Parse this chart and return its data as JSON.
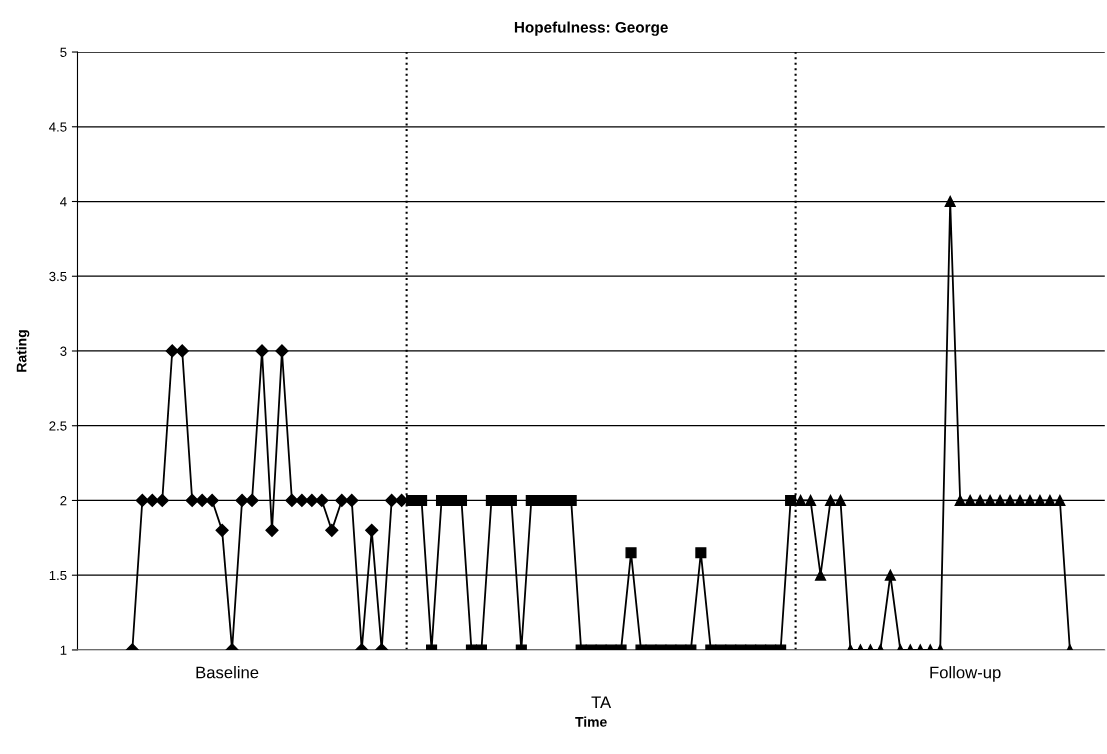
{
  "chart_data": {
    "type": "line",
    "title": "Hopefulness: George",
    "xlabel": "Time",
    "ylabel": "Rating",
    "categories": [
      null,
      null,
      null,
      null,
      null,
      null,
      null,
      null,
      null,
      null,
      null,
      null,
      null,
      null,
      null,
      null,
      null,
      null,
      null,
      null,
      null,
      null,
      null,
      null,
      null,
      null,
      null,
      null,
      null,
      null,
      null,
      null,
      null,
      null,
      null,
      null,
      null,
      null,
      null,
      null,
      null,
      null,
      null,
      null,
      null,
      null,
      null,
      null,
      null,
      null,
      null,
      null,
      null,
      null,
      null,
      null,
      null,
      null,
      null,
      null,
      null,
      null,
      null,
      null,
      null,
      null,
      null,
      null,
      null,
      null,
      null,
      null,
      null,
      null,
      null,
      null,
      null,
      null,
      null,
      null,
      null,
      null,
      null,
      null,
      null,
      null,
      null,
      null,
      null,
      null,
      null,
      null,
      null,
      null,
      null,
      null,
      null,
      null,
      null,
      null,
      null,
      null,
      null
    ],
    "ylim": [
      1,
      5
    ],
    "yticks": [
      1,
      1.5,
      2,
      2.5,
      3,
      3.5,
      4,
      4.5,
      5
    ],
    "grid": "y",
    "tick_labels": "y",
    "series": [
      {
        "color": "#000000",
        "marker": "diamond",
        "values": [
          null,
          null,
          null,
          null,
          null,
          1,
          2,
          2,
          2,
          3,
          3,
          2,
          2,
          2,
          1.8,
          1,
          2,
          2,
          3,
          1.8,
          3,
          2,
          2,
          2,
          2,
          1.8,
          2,
          2,
          1,
          1.8,
          1,
          2,
          2,
          null,
          null,
          null,
          null,
          null,
          null,
          null,
          null,
          null,
          null,
          null,
          null,
          null,
          null,
          null,
          null,
          null,
          null,
          null,
          null,
          null,
          null,
          null,
          null,
          null,
          null,
          null,
          null,
          null,
          null,
          null,
          null,
          null,
          null,
          null,
          null,
          null,
          null,
          null,
          null,
          null,
          null,
          null,
          null,
          null,
          null,
          null,
          null,
          null,
          null,
          null,
          null,
          null,
          null,
          null,
          null,
          null,
          null,
          null,
          null,
          null,
          null,
          null,
          null,
          null,
          null,
          null,
          null,
          null,
          null
        ]
      },
      {
        "color": "#000000",
        "marker": "square",
        "values": [
          null,
          null,
          null,
          null,
          null,
          null,
          null,
          null,
          null,
          null,
          null,
          null,
          null,
          null,
          null,
          null,
          null,
          null,
          null,
          null,
          null,
          null,
          null,
          null,
          null,
          null,
          null,
          null,
          null,
          null,
          null,
          null,
          null,
          2,
          2,
          1,
          2,
          2,
          2,
          1,
          1,
          2,
          2,
          2,
          1,
          2,
          2,
          2,
          2,
          2,
          1,
          1,
          1,
          1,
          1,
          1.65,
          1,
          1,
          1,
          1,
          1,
          1,
          1.65,
          1,
          1,
          1,
          1,
          1,
          1,
          1,
          1,
          2,
          null,
          null,
          null,
          null,
          null,
          null,
          null,
          null,
          null,
          null,
          null,
          null,
          null,
          null,
          null,
          null,
          null,
          null,
          null,
          null,
          null,
          null,
          null,
          null,
          null,
          null,
          null,
          null,
          null,
          null,
          null
        ]
      },
      {
        "color": "#000000",
        "marker": "triangle",
        "values": [
          null,
          null,
          null,
          null,
          null,
          null,
          null,
          null,
          null,
          null,
          null,
          null,
          null,
          null,
          null,
          null,
          null,
          null,
          null,
          null,
          null,
          null,
          null,
          null,
          null,
          null,
          null,
          null,
          null,
          null,
          null,
          null,
          null,
          null,
          null,
          null,
          null,
          null,
          null,
          null,
          null,
          null,
          null,
          null,
          null,
          null,
          null,
          null,
          null,
          null,
          null,
          null,
          null,
          null,
          null,
          null,
          null,
          null,
          null,
          null,
          null,
          null,
          null,
          null,
          null,
          null,
          null,
          null,
          null,
          null,
          null,
          null,
          2,
          2,
          1.5,
          2,
          2,
          1,
          1,
          1,
          1,
          1.5,
          1,
          1,
          1,
          1,
          1,
          4,
          2,
          2,
          2,
          2,
          2,
          2,
          2,
          2,
          2,
          2,
          2,
          1,
          null,
          null,
          null
        ]
      }
    ],
    "annotations": [
      "Baseline",
      "TA",
      "Follow-up"
    ]
  }
}
